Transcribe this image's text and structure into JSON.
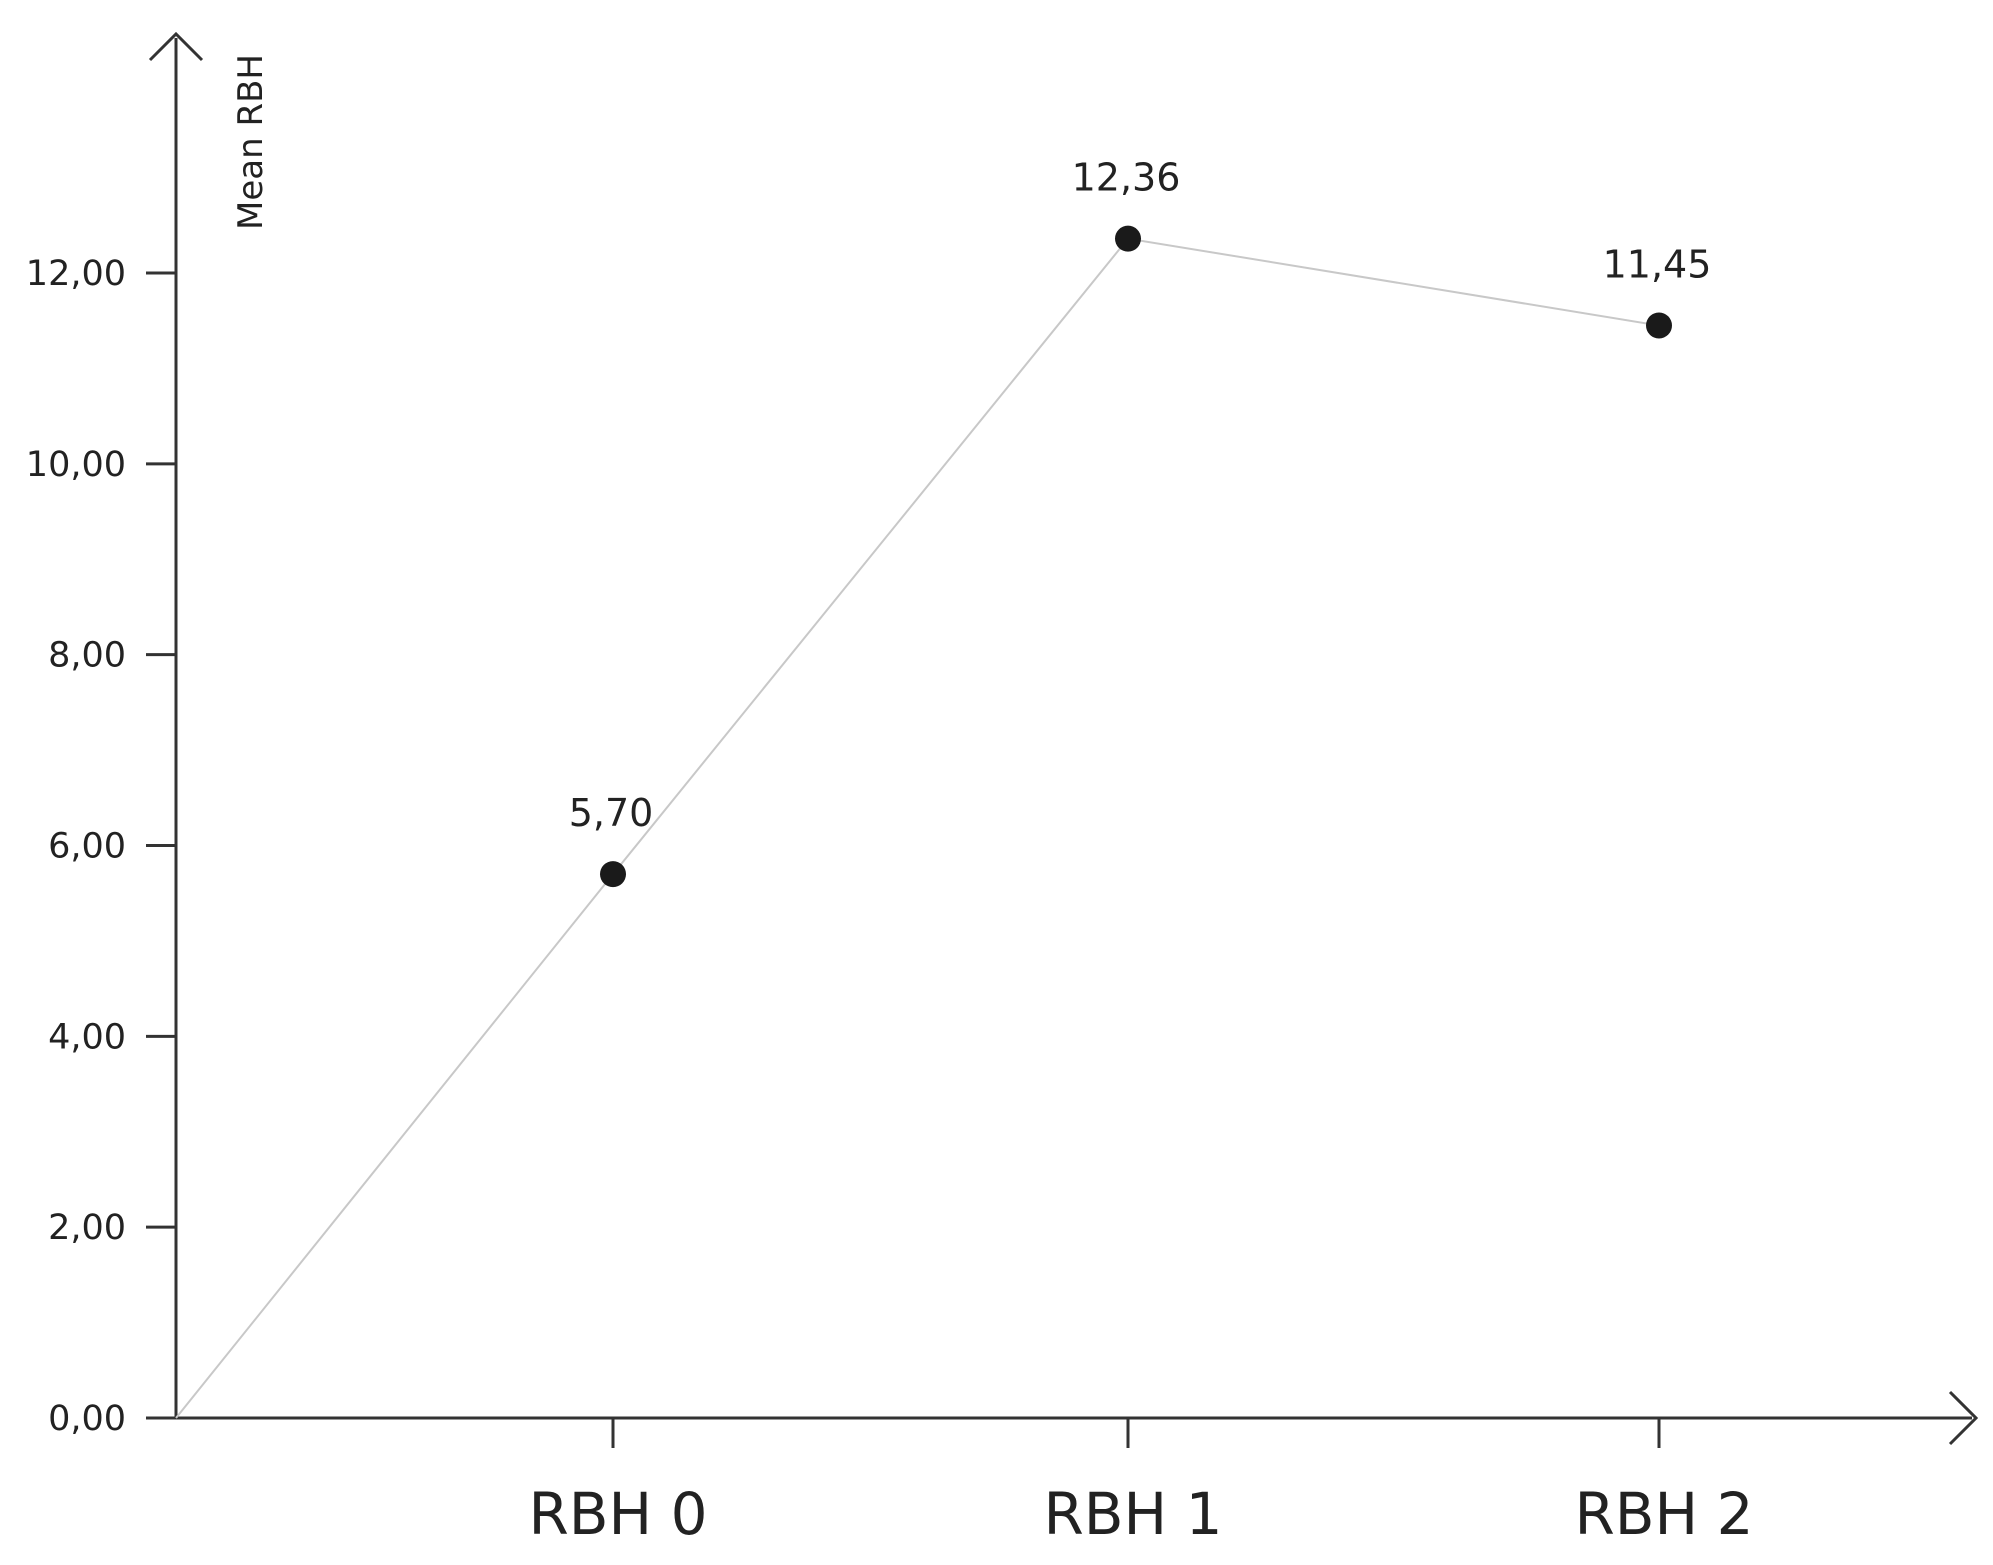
{
  "chart_data": {
    "type": "line",
    "title": "",
    "xlabel": "",
    "ylabel": "Mean RBH",
    "categories": [
      "RBH 0",
      "RBH 1",
      "RBH 2"
    ],
    "series": [
      {
        "values": [
          5.7,
          12.36,
          11.45
        ],
        "data_labels": [
          "5,70",
          "12,36",
          "11,45"
        ]
      }
    ],
    "line_starts_at_origin": true,
    "ylim": [
      0,
      12
    ],
    "yticks": [
      0,
      2,
      4,
      6,
      8,
      10,
      12
    ],
    "ytick_labels": [
      "0,00",
      "2,00",
      "4,00",
      "6,00",
      "8,00",
      "10,00",
      "12,00"
    ],
    "grid": false,
    "legend": "none",
    "colors": {
      "line": "#c8c8c8",
      "marker": "#1a1a1a",
      "axis": "#333333",
      "text": "#222222"
    }
  }
}
